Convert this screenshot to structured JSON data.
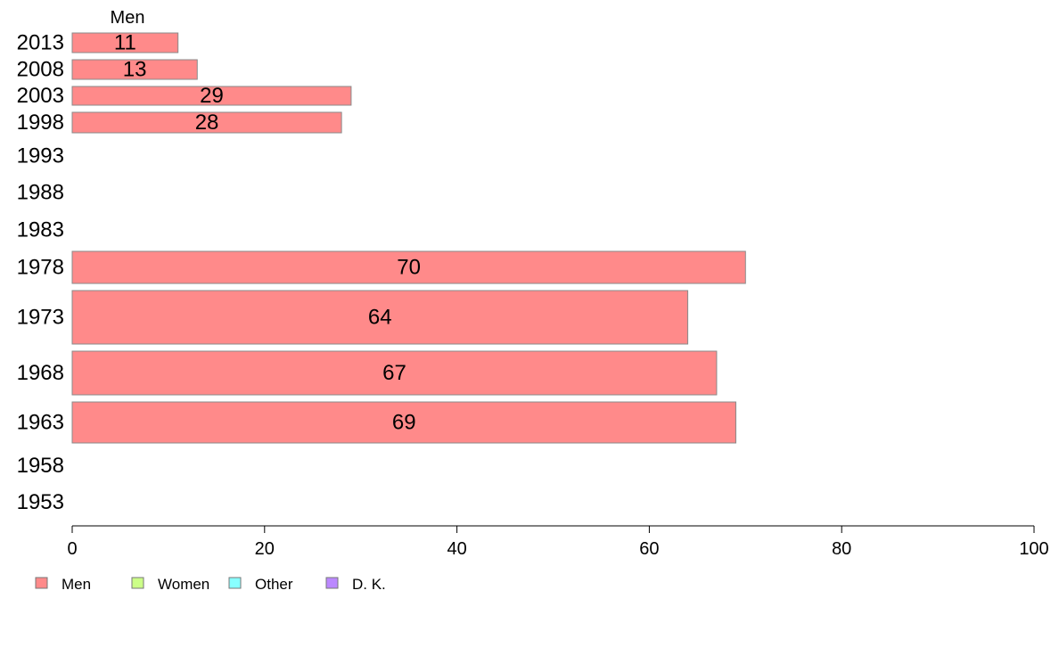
{
  "chart_data": {
    "type": "bar",
    "orientation": "horizontal",
    "header": "Men",
    "categories": [
      "2013",
      "2008",
      "2003",
      "1998",
      "1993",
      "1988",
      "1983",
      "1978",
      "1973",
      "1968",
      "1963",
      "1958",
      "1953"
    ],
    "series": [
      {
        "name": "Men",
        "color": "#ff8a8a",
        "values": [
          11,
          13,
          29,
          28,
          null,
          null,
          null,
          70,
          64,
          67,
          69,
          null,
          null
        ],
        "value_labels": [
          "11",
          "13",
          "29",
          "28",
          null,
          null,
          null,
          "70",
          "64",
          "67",
          "69",
          null,
          null
        ]
      }
    ],
    "xlim": [
      0,
      100
    ],
    "xticks": [
      "0",
      "20",
      "40",
      "60",
      "80",
      "100"
    ],
    "grid": false,
    "legend": {
      "placement": "bottom-left",
      "items": [
        {
          "label": "Men",
          "color": "#ff8a8a"
        },
        {
          "label": "Women",
          "color": "#ccff88"
        },
        {
          "label": "Other",
          "color": "#88ffff"
        },
        {
          "label": "D. K.",
          "color": "#bb88ff"
        }
      ]
    }
  }
}
